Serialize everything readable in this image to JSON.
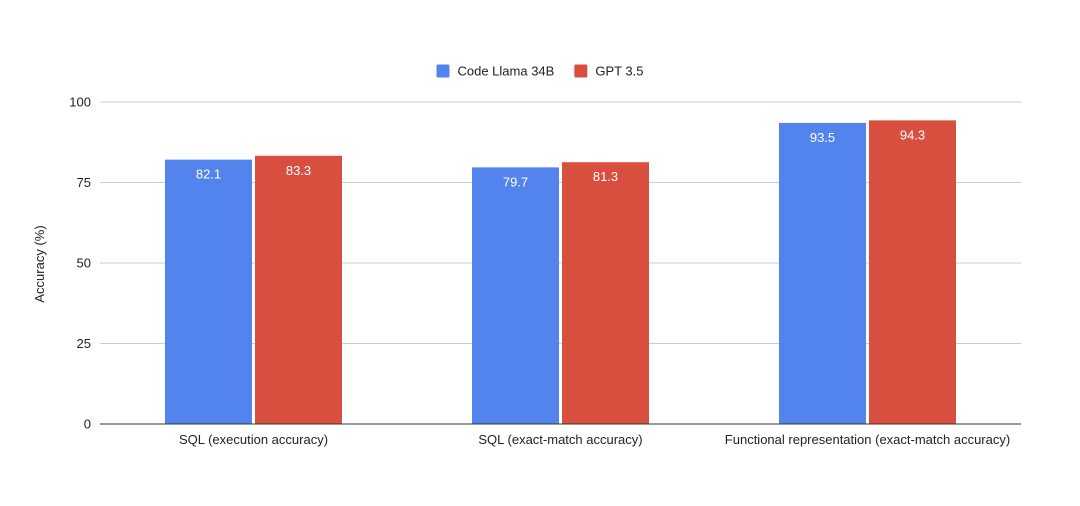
{
  "chart_data": {
    "type": "bar",
    "title": "",
    "xlabel": "",
    "ylabel": "Accuracy (%)",
    "ylim": [
      0,
      100
    ],
    "yticks": [
      0,
      25,
      50,
      75,
      100
    ],
    "grid": true,
    "legend_position": "top-center",
    "categories": [
      "SQL (execution accuracy)",
      "SQL (exact-match accuracy)",
      "Functional representation (exact-match accuracy)"
    ],
    "series": [
      {
        "name": "Code Llama 34B",
        "color": "#5384EE",
        "values": [
          82.1,
          79.7,
          93.5
        ]
      },
      {
        "name": "GPT 3.5",
        "color": "#D84F40",
        "values": [
          83.3,
          81.3,
          94.3
        ]
      }
    ]
  }
}
